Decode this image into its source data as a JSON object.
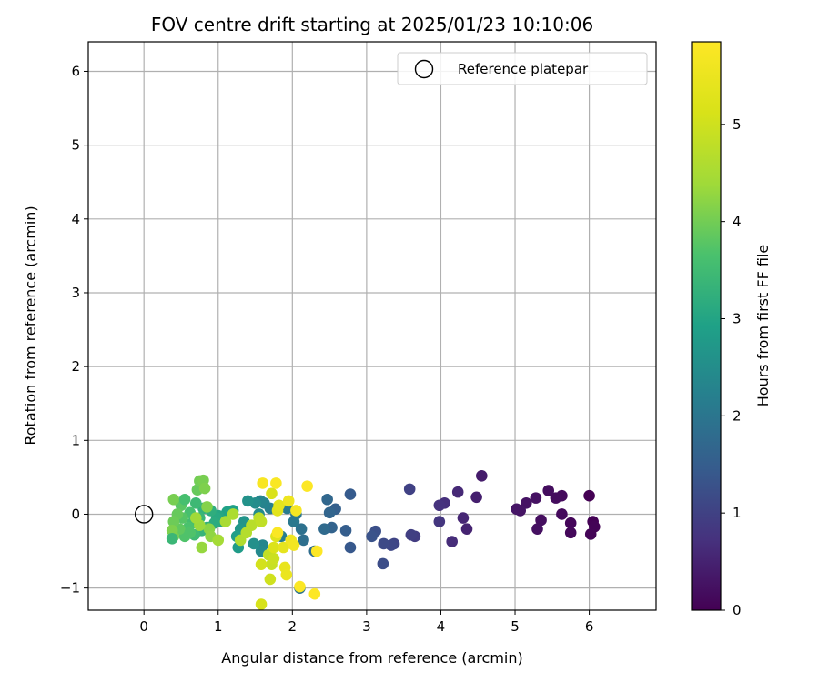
{
  "chart_data": {
    "type": "scatter",
    "title": "FOV centre drift starting at 2025/01/23 10:10:06",
    "xlabel": "Angular distance from reference (arcmin)",
    "ylabel": "Rotation from reference (arcmin)",
    "xlim": [
      -0.75,
      6.9
    ],
    "ylim": [
      -1.3,
      6.4
    ],
    "xticks": [
      0,
      1,
      2,
      3,
      4,
      5,
      6
    ],
    "yticks": [
      -1,
      0,
      1,
      2,
      3,
      4,
      5,
      6
    ],
    "grid": true,
    "legend_location": "top-right",
    "legend_entries": [
      "Reference platepar"
    ],
    "reference_point": {
      "x": 0,
      "y": 0
    },
    "colormap": "viridis",
    "colorbar_label": "Hours from first FF file",
    "colorbar_range": [
      0,
      5.85
    ],
    "colorbar_ticks": [
      0,
      1,
      2,
      3,
      4,
      5
    ],
    "points": [
      {
        "x": 6.0,
        "y": 0.25,
        "c": 0.0
      },
      {
        "x": 6.05,
        "y": -0.1,
        "c": 0.02
      },
      {
        "x": 6.07,
        "y": -0.17,
        "c": 0.04
      },
      {
        "x": 6.02,
        "y": -0.27,
        "c": 0.06
      },
      {
        "x": 5.75,
        "y": -0.12,
        "c": 0.08
      },
      {
        "x": 5.75,
        "y": -0.25,
        "c": 0.1
      },
      {
        "x": 5.63,
        "y": 0.0,
        "c": 0.12
      },
      {
        "x": 5.63,
        "y": 0.25,
        "c": 0.14
      },
      {
        "x": 5.55,
        "y": 0.22,
        "c": 0.16
      },
      {
        "x": 5.45,
        "y": 0.32,
        "c": 0.18
      },
      {
        "x": 5.35,
        "y": -0.08,
        "c": 0.2
      },
      {
        "x": 5.3,
        "y": -0.2,
        "c": 0.22
      },
      {
        "x": 5.28,
        "y": 0.22,
        "c": 0.24
      },
      {
        "x": 5.15,
        "y": 0.15,
        "c": 0.26
      },
      {
        "x": 5.07,
        "y": 0.05,
        "c": 0.28
      },
      {
        "x": 5.02,
        "y": 0.07,
        "c": 0.3
      },
      {
        "x": 4.55,
        "y": 0.52,
        "c": 0.4
      },
      {
        "x": 4.48,
        "y": 0.23,
        "c": 0.45
      },
      {
        "x": 4.35,
        "y": -0.2,
        "c": 0.5
      },
      {
        "x": 4.3,
        "y": -0.05,
        "c": 0.55
      },
      {
        "x": 4.23,
        "y": 0.3,
        "c": 0.6
      },
      {
        "x": 4.15,
        "y": -0.37,
        "c": 0.65
      },
      {
        "x": 4.05,
        "y": 0.15,
        "c": 0.7
      },
      {
        "x": 3.98,
        "y": 0.12,
        "c": 0.75
      },
      {
        "x": 3.98,
        "y": -0.1,
        "c": 0.8
      },
      {
        "x": 3.65,
        "y": -0.3,
        "c": 0.9
      },
      {
        "x": 3.6,
        "y": -0.28,
        "c": 0.95
      },
      {
        "x": 3.58,
        "y": 0.34,
        "c": 1.0
      },
      {
        "x": 3.37,
        "y": -0.4,
        "c": 1.05
      },
      {
        "x": 3.33,
        "y": -0.42,
        "c": 1.1
      },
      {
        "x": 3.23,
        "y": -0.4,
        "c": 1.15
      },
      {
        "x": 3.22,
        "y": -0.67,
        "c": 1.2
      },
      {
        "x": 3.12,
        "y": -0.23,
        "c": 1.25
      },
      {
        "x": 3.07,
        "y": -0.3,
        "c": 1.3
      },
      {
        "x": 2.78,
        "y": -0.45,
        "c": 1.4
      },
      {
        "x": 2.78,
        "y": 0.27,
        "c": 1.45
      },
      {
        "x": 2.72,
        "y": -0.22,
        "c": 1.5
      },
      {
        "x": 2.58,
        "y": 0.07,
        "c": 1.55
      },
      {
        "x": 2.53,
        "y": -0.18,
        "c": 1.6
      },
      {
        "x": 2.5,
        "y": 0.02,
        "c": 1.65
      },
      {
        "x": 2.47,
        "y": 0.2,
        "c": 1.7
      },
      {
        "x": 2.43,
        "y": -0.2,
        "c": 1.75
      },
      {
        "x": 2.3,
        "y": -0.5,
        "c": 1.8
      },
      {
        "x": 2.15,
        "y": -0.35,
        "c": 1.85
      },
      {
        "x": 2.12,
        "y": -0.2,
        "c": 1.9
      },
      {
        "x": 2.1,
        "y": -1.0,
        "c": 1.95
      },
      {
        "x": 2.05,
        "y": 0.0,
        "c": 2.0
      },
      {
        "x": 2.02,
        "y": -0.1,
        "c": 2.05
      },
      {
        "x": 1.93,
        "y": 0.08,
        "c": 2.1
      },
      {
        "x": 1.85,
        "y": -0.3,
        "c": 2.15
      },
      {
        "x": 1.7,
        "y": 0.08,
        "c": 2.2
      },
      {
        "x": 1.62,
        "y": 0.15,
        "c": 2.25
      },
      {
        "x": 1.57,
        "y": 0.18,
        "c": 2.3
      },
      {
        "x": 1.6,
        "y": -0.42,
        "c": 2.35
      },
      {
        "x": 1.58,
        "y": -0.5,
        "c": 2.4
      },
      {
        "x": 1.55,
        "y": 0.0,
        "c": 2.45
      },
      {
        "x": 1.5,
        "y": 0.15,
        "c": 2.5
      },
      {
        "x": 1.48,
        "y": -0.4,
        "c": 2.55
      },
      {
        "x": 1.4,
        "y": 0.18,
        "c": 2.6
      },
      {
        "x": 1.35,
        "y": -0.1,
        "c": 2.65
      },
      {
        "x": 1.3,
        "y": -0.2,
        "c": 2.7
      },
      {
        "x": 1.27,
        "y": -0.45,
        "c": 2.8
      },
      {
        "x": 1.25,
        "y": -0.3,
        "c": 2.85
      },
      {
        "x": 1.2,
        "y": 0.05,
        "c": 2.9
      },
      {
        "x": 1.12,
        "y": 0.03,
        "c": 2.95
      },
      {
        "x": 1.05,
        "y": -0.1,
        "c": 3.0
      },
      {
        "x": 1.0,
        "y": -0.02,
        "c": 3.05
      },
      {
        "x": 0.98,
        "y": -0.05,
        "c": 3.1
      },
      {
        "x": 0.95,
        "y": -0.12,
        "c": 3.15
      },
      {
        "x": 0.9,
        "y": 0.05,
        "c": 3.2
      },
      {
        "x": 0.85,
        "y": -0.18,
        "c": 3.25
      },
      {
        "x": 0.8,
        "y": 0.08,
        "c": 3.3
      },
      {
        "x": 0.78,
        "y": -0.22,
        "c": 3.35
      },
      {
        "x": 0.75,
        "y": -0.05,
        "c": 3.4
      },
      {
        "x": 0.7,
        "y": 0.15,
        "c": 3.45
      },
      {
        "x": 0.68,
        "y": -0.28,
        "c": 3.5
      },
      {
        "x": 0.65,
        "y": -0.12,
        "c": 3.55
      },
      {
        "x": 0.62,
        "y": 0.02,
        "c": 3.6
      },
      {
        "x": 0.6,
        "y": -0.18,
        "c": 3.65
      },
      {
        "x": 0.55,
        "y": -0.3,
        "c": 3.7
      },
      {
        "x": 0.52,
        "y": -0.05,
        "c": 3.75
      },
      {
        "x": 0.5,
        "y": 0.12,
        "c": 3.8
      },
      {
        "x": 0.48,
        "y": -0.2,
        "c": 3.85
      },
      {
        "x": 0.45,
        "y": 0.0,
        "c": 3.9
      },
      {
        "x": 0.4,
        "y": -0.1,
        "c": 3.95
      },
      {
        "x": 0.4,
        "y": -0.3,
        "c": 4.0
      },
      {
        "x": 0.4,
        "y": 0.2,
        "c": 4.05
      },
      {
        "x": 0.38,
        "y": -0.22,
        "c": 4.1
      },
      {
        "x": 0.38,
        "y": -0.33,
        "c": 3.4
      },
      {
        "x": 0.55,
        "y": 0.2,
        "c": 3.6
      },
      {
        "x": 0.62,
        "y": -0.25,
        "c": 3.7
      },
      {
        "x": 0.72,
        "y": 0.33,
        "c": 3.9
      },
      {
        "x": 0.75,
        "y": 0.45,
        "c": 4.0
      },
      {
        "x": 0.8,
        "y": 0.46,
        "c": 4.05
      },
      {
        "x": 0.82,
        "y": 0.35,
        "c": 4.1
      },
      {
        "x": 0.85,
        "y": 0.1,
        "c": 4.15
      },
      {
        "x": 0.88,
        "y": -0.2,
        "c": 4.2
      },
      {
        "x": 0.9,
        "y": -0.3,
        "c": 4.25
      },
      {
        "x": 0.78,
        "y": -0.45,
        "c": 4.3
      },
      {
        "x": 0.75,
        "y": -0.15,
        "c": 4.35
      },
      {
        "x": 0.7,
        "y": -0.05,
        "c": 4.4
      },
      {
        "x": 1.0,
        "y": -0.35,
        "c": 4.45
      },
      {
        "x": 1.1,
        "y": -0.1,
        "c": 4.5
      },
      {
        "x": 1.2,
        "y": 0.0,
        "c": 4.55
      },
      {
        "x": 1.3,
        "y": -0.35,
        "c": 4.6
      },
      {
        "x": 1.38,
        "y": -0.25,
        "c": 4.65
      },
      {
        "x": 1.45,
        "y": -0.15,
        "c": 4.7
      },
      {
        "x": 1.55,
        "y": -0.05,
        "c": 4.75
      },
      {
        "x": 1.58,
        "y": -0.1,
        "c": 4.8
      },
      {
        "x": 1.68,
        "y": -0.55,
        "c": 4.85
      },
      {
        "x": 1.72,
        "y": -0.68,
        "c": 4.9
      },
      {
        "x": 1.75,
        "y": -0.6,
        "c": 4.95
      },
      {
        "x": 1.7,
        "y": -0.88,
        "c": 5.0
      },
      {
        "x": 1.58,
        "y": -0.68,
        "c": 5.05
      },
      {
        "x": 1.58,
        "y": -1.22,
        "c": 5.1
      },
      {
        "x": 1.72,
        "y": 0.28,
        "c": 5.15
      },
      {
        "x": 1.75,
        "y": -0.45,
        "c": 5.2
      },
      {
        "x": 1.78,
        "y": -0.3,
        "c": 5.25
      },
      {
        "x": 1.8,
        "y": 0.05,
        "c": 5.3
      },
      {
        "x": 1.82,
        "y": 0.12,
        "c": 5.35
      },
      {
        "x": 1.88,
        "y": -0.45,
        "c": 5.4
      },
      {
        "x": 1.9,
        "y": -0.72,
        "c": 5.45
      },
      {
        "x": 1.92,
        "y": -0.82,
        "c": 5.5
      },
      {
        "x": 1.95,
        "y": 0.18,
        "c": 5.55
      },
      {
        "x": 1.98,
        "y": -0.35,
        "c": 5.6
      },
      {
        "x": 2.02,
        "y": -0.42,
        "c": 5.65
      },
      {
        "x": 2.05,
        "y": 0.05,
        "c": 5.7
      },
      {
        "x": 1.6,
        "y": 0.42,
        "c": 5.75
      },
      {
        "x": 1.78,
        "y": 0.42,
        "c": 5.78
      },
      {
        "x": 1.8,
        "y": -0.25,
        "c": 5.8
      },
      {
        "x": 2.1,
        "y": -0.98,
        "c": 5.82
      },
      {
        "x": 2.2,
        "y": 0.38,
        "c": 5.83
      },
      {
        "x": 2.3,
        "y": -1.08,
        "c": 5.84
      },
      {
        "x": 2.33,
        "y": -0.5,
        "c": 5.85
      }
    ]
  }
}
